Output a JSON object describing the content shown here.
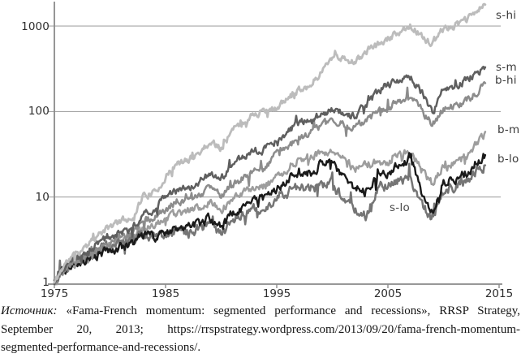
{
  "chart_data": {
    "type": "line",
    "title": "",
    "xlabel": "",
    "ylabel": "",
    "y_scale": "log",
    "grid": "horizontal",
    "legend_position": "inline-right-labels",
    "x_axis": {
      "ticks": [
        "1975",
        "1985",
        "1995",
        "2005",
        "2015"
      ],
      "range": [
        1975,
        2015.3
      ]
    },
    "y_axis": {
      "ticks": [
        "1",
        "10",
        "100",
        "1000"
      ],
      "range": [
        1,
        2000
      ]
    },
    "x": [
      1975,
      1976,
      1977,
      1978,
      1979,
      1980,
      1981,
      1982,
      1983,
      1984,
      1985,
      1986,
      1987,
      1988,
      1989,
      1990,
      1991,
      1992,
      1993,
      1994,
      1995,
      1996,
      1997,
      1998,
      1999,
      2000,
      2001,
      2002,
      2003,
      2004,
      2005,
      2006,
      2007,
      2008,
      2009,
      2010,
      2011,
      2012,
      2013,
      2013.75
    ],
    "series": [
      {
        "name": "s-hi",
        "color": "#bcbcbc",
        "values": [
          1,
          1.7,
          2.2,
          2.7,
          3.6,
          4.5,
          5.3,
          5.7,
          10.5,
          11,
          17,
          24,
          27,
          33,
          44,
          38,
          60,
          75,
          95,
          100,
          110,
          140,
          185,
          200,
          290,
          450,
          420,
          370,
          500,
          600,
          700,
          850,
          1050,
          750,
          620,
          950,
          1000,
          1150,
          1500,
          1780
        ]
      },
      {
        "name": "s-m",
        "color": "#5f5f5f",
        "values": [
          1,
          1.55,
          1.95,
          2.3,
          2.9,
          3.4,
          3.9,
          4.2,
          6.5,
          7.2,
          10.5,
          12.5,
          13,
          15,
          18.5,
          16.5,
          24,
          29,
          35,
          36,
          45,
          58,
          75,
          80,
          95,
          105,
          100,
          85,
          120,
          165,
          205,
          235,
          250,
          170,
          95,
          190,
          200,
          230,
          290,
          330
        ]
      },
      {
        "name": "b-hi",
        "color": "#8c8c8c",
        "values": [
          1,
          1.5,
          1.8,
          2.1,
          2.6,
          3.1,
          3.4,
          3.7,
          5.2,
          5.8,
          7.2,
          8.8,
          9.5,
          10.5,
          12.5,
          10,
          14,
          16.5,
          20,
          21,
          33,
          38,
          50,
          58,
          70,
          77,
          72,
          64,
          80,
          95,
          110,
          130,
          150,
          105,
          72,
          108,
          115,
          130,
          170,
          215
        ]
      },
      {
        "name": "b-m",
        "color": "#9d9d9d",
        "values": [
          1,
          1.45,
          1.7,
          1.95,
          2.4,
          2.8,
          3,
          3.3,
          4.4,
          4.8,
          5.5,
          6.5,
          6.8,
          7.5,
          8.8,
          6.9,
          9.5,
          11,
          13,
          13.5,
          17,
          22,
          28,
          30,
          33,
          33,
          28,
          21,
          24,
          25.5,
          26,
          30,
          34,
          21,
          13.5,
          22,
          25,
          30,
          42,
          58
        ]
      },
      {
        "name": "b-lo",
        "color": "#1a1a1a",
        "values": [
          1,
          1.5,
          1.65,
          1.8,
          2.1,
          2.4,
          2.6,
          2.9,
          3.6,
          3.4,
          3.9,
          4.4,
          4.3,
          4.8,
          5.6,
          4.4,
          6.5,
          7.5,
          9,
          9.5,
          13,
          16,
          20,
          19,
          24,
          26,
          17,
          13,
          11.5,
          17,
          19,
          24,
          30,
          12,
          6.5,
          15,
          16,
          19,
          26,
          31
        ]
      },
      {
        "name": "s-lo",
        "color": "#757575",
        "values": [
          1,
          1.5,
          1.75,
          2,
          2.4,
          2.7,
          2.9,
          3,
          3.9,
          3.3,
          3.7,
          4.1,
          3.8,
          4.3,
          4.8,
          3.6,
          5.5,
          6.2,
          7.5,
          7.6,
          10,
          11.5,
          13.5,
          12,
          14.5,
          14,
          9.5,
          7,
          6,
          12.5,
          14,
          16,
          17,
          8.5,
          5.6,
          12,
          13,
          15,
          20,
          23.5
        ]
      }
    ]
  },
  "caption": {
    "source_label": "Источник:",
    "line1_rest": "«Fama-French momentum: segmented performance and recessions», RRSP Strategy,",
    "line2": "September 20, 2013; https://rrspstrategy.wordpress.com/2013/09/20/fama-french-momentum-",
    "line3": "segmented-performance-and-recessions/."
  }
}
